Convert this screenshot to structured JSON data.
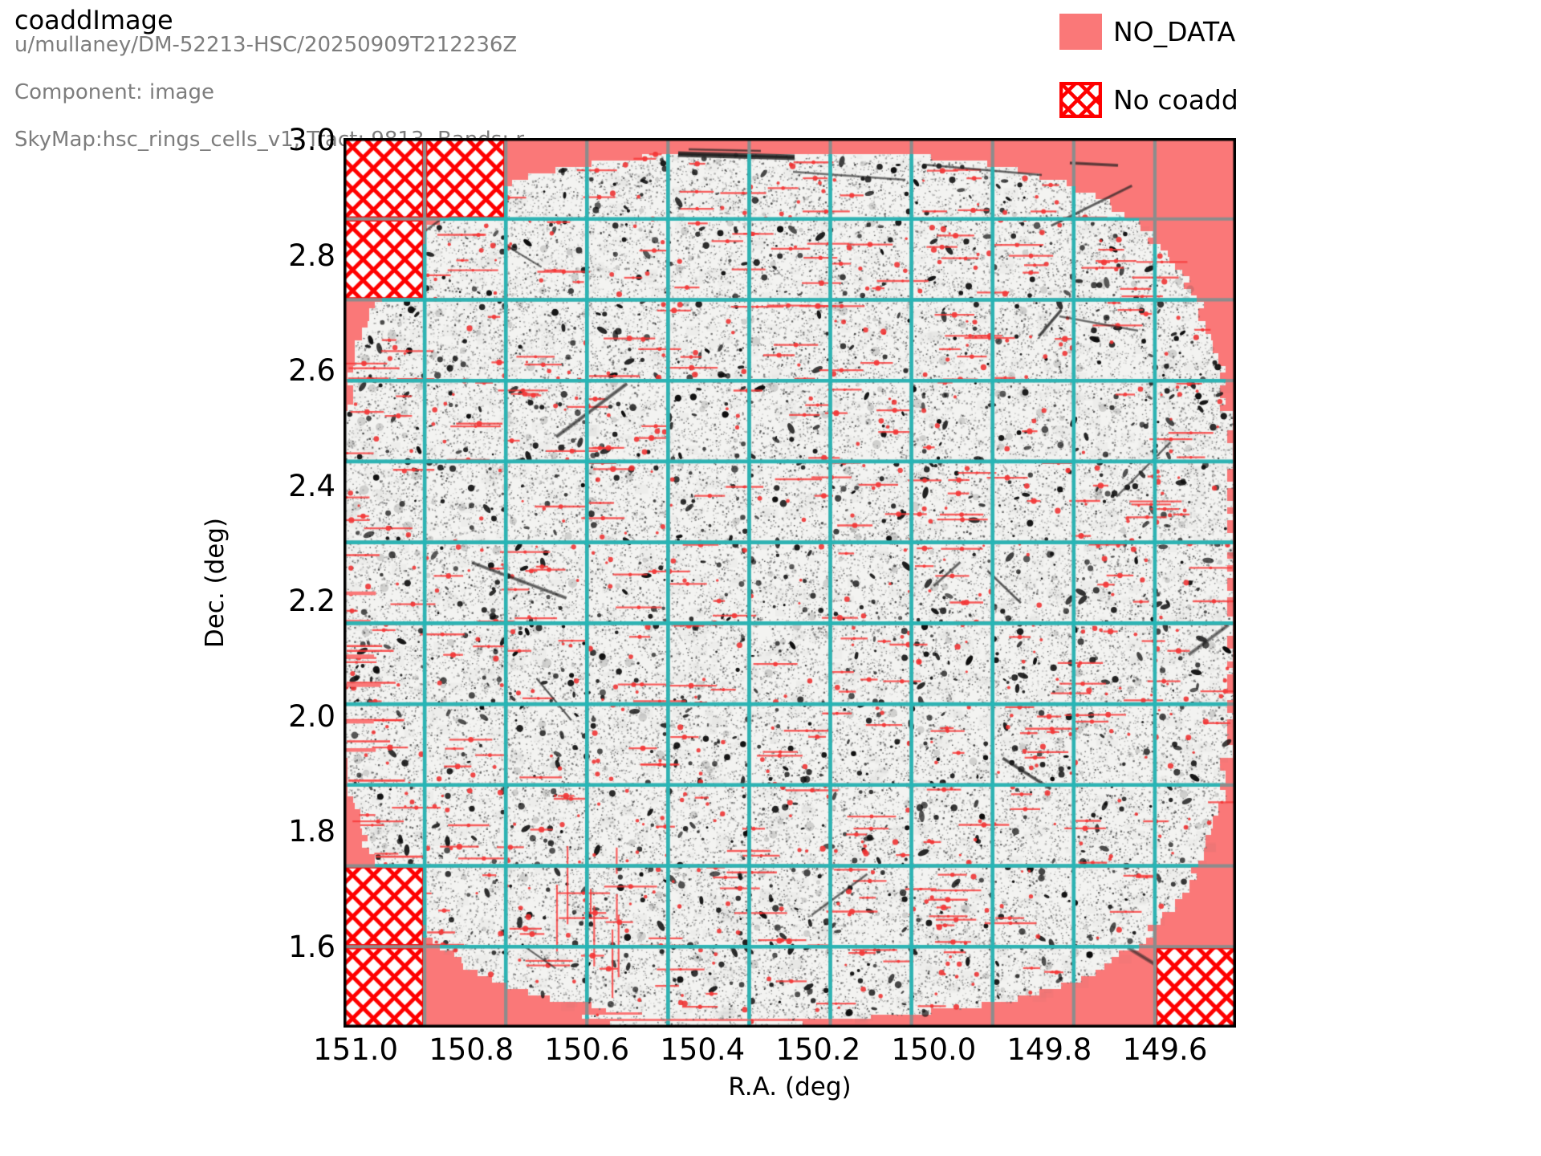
{
  "header": {
    "title": "coaddImage",
    "subtitle_lines": [
      "u/mullaney/DM-52213-HSC/20250909T212236Z",
      "Component: image",
      "SkyMap:hsc_rings_cells_v1, Tract: 9813, Bands: r"
    ]
  },
  "dataset": {
    "collection": "u/mullaney/DM-52213-HSC/20250909T212236Z",
    "component": "image",
    "skymap": "hsc_rings_cells_v1",
    "tract": 9813,
    "bands": "r"
  },
  "legend": {
    "items": [
      {
        "label": "NO_DATA",
        "swatch": "filled",
        "color": "#fa7878"
      },
      {
        "label": "No coadd",
        "swatch": "hatched",
        "color": "#fe0000"
      }
    ]
  },
  "chart_data": {
    "type": "heatmap",
    "title": "coaddImage",
    "xlabel": "R.A. (deg)",
    "ylabel": "Dec. (deg)",
    "x_ticks": [
      151.0,
      150.8,
      150.6,
      150.4,
      150.2,
      150.0,
      149.8,
      149.6
    ],
    "y_ticks": [
      3.0,
      2.8,
      2.6,
      2.4,
      2.2,
      2.0,
      1.8,
      1.6
    ],
    "xlim": [
      151.021,
      149.477
    ],
    "ylim": [
      1.463,
      3.007
    ],
    "x_direction": "decreasing",
    "grid": "patch boundaries, teal semi-transparent",
    "patch_grid": {
      "n_cols": 11,
      "n_rows": 11
    },
    "no_coadd_patches": [
      [
        0,
        0
      ],
      [
        1,
        0
      ],
      [
        0,
        1
      ],
      [
        0,
        9
      ],
      [
        0,
        10
      ],
      [
        10,
        10
      ]
    ],
    "footprint": {
      "shape": "rounded-circular tract footprint",
      "center_ra": 150.25,
      "center_dec": 2.23,
      "radius_deg": 0.77
    },
    "colors": {
      "no_data_fill": "#fa7878",
      "no_coadd_hatch": "#fe0000",
      "grid_teal": "#23b7b7",
      "patch_boundary_gray": "#8c8c8c",
      "image_background": "#f3f3f1",
      "spine": "#000000"
    }
  }
}
